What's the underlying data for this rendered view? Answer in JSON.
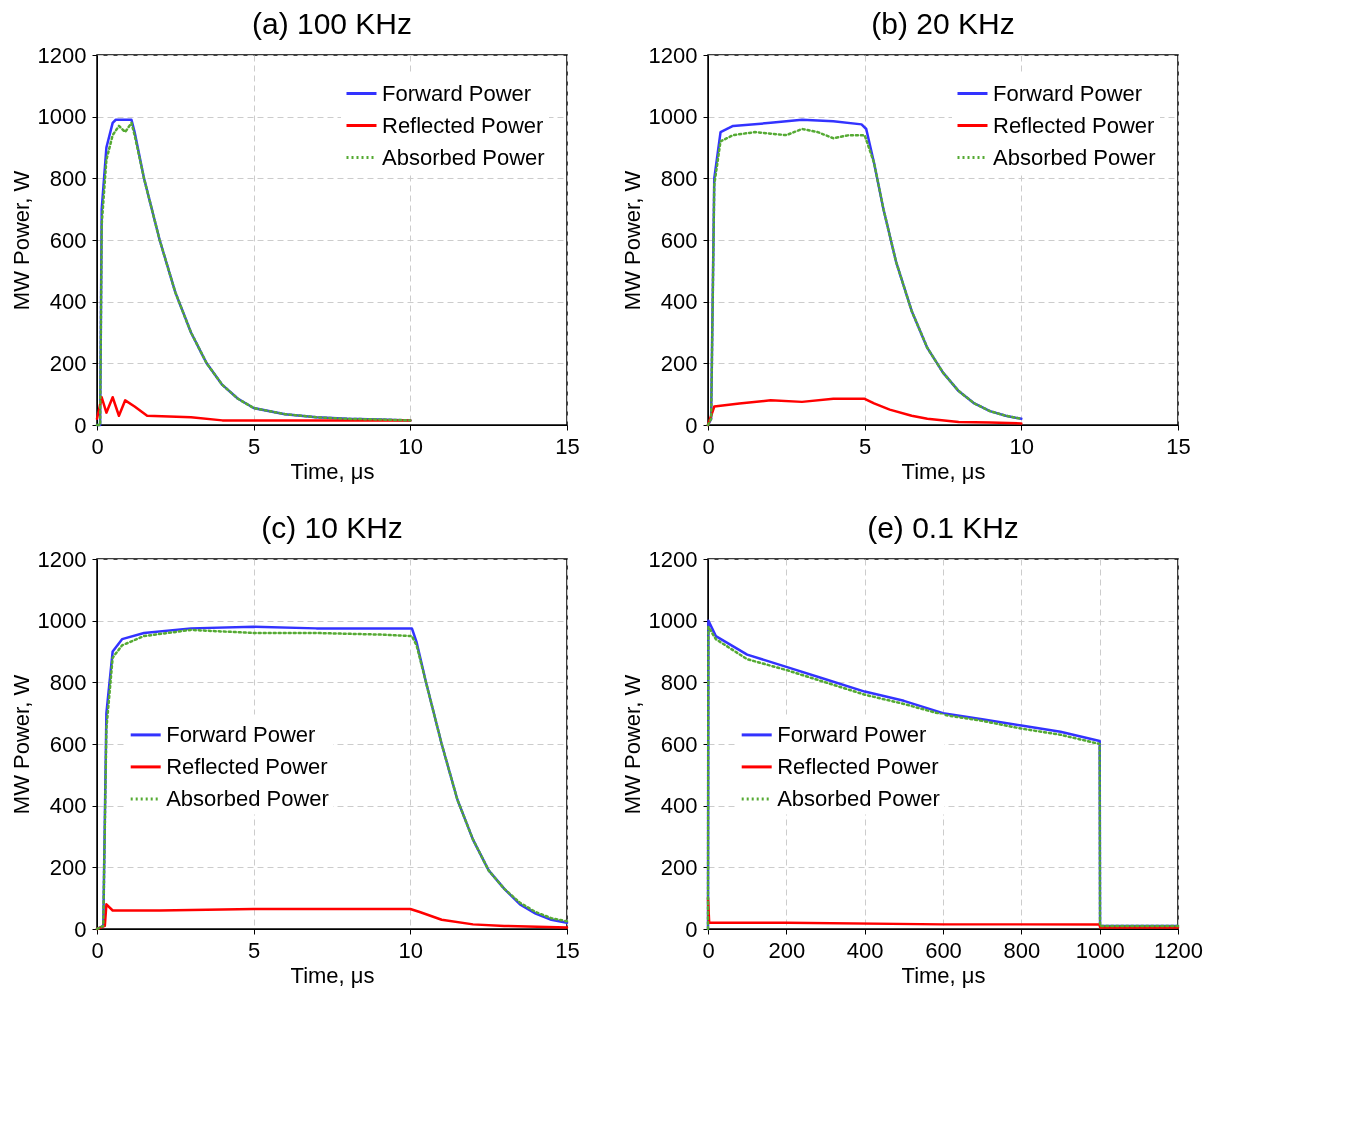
{
  "chart_data": [
    {
      "type": "line",
      "title": "(a) 100 KHz",
      "xlabel": "Time, μs",
      "ylabel": "MW Power, W",
      "xlim": [
        0,
        15
      ],
      "xticks": [
        0,
        5,
        10,
        15
      ],
      "ylim": [
        0,
        1200
      ],
      "yticks": [
        0,
        200,
        400,
        600,
        800,
        1000,
        1200
      ],
      "grid": true,
      "legend": "top right",
      "series": [
        {
          "name": "Forward Power",
          "color": "#3333ff",
          "line_style": "solid",
          "x": [
            0,
            0.1,
            0.15,
            0.3,
            0.5,
            0.6,
            1.1,
            1.2,
            1.5,
            2,
            2.5,
            3,
            3.5,
            4,
            4.5,
            5,
            6,
            7,
            8,
            9,
            10
          ],
          "values": [
            0,
            0,
            700,
            900,
            980,
            990,
            990,
            950,
            800,
            600,
            430,
            300,
            200,
            130,
            85,
            55,
            35,
            25,
            20,
            18,
            15
          ]
        },
        {
          "name": "Reflected Power",
          "color": "#ff0000",
          "line_style": "solid",
          "x": [
            0,
            0.15,
            0.3,
            0.5,
            0.7,
            0.9,
            1.2,
            1.6,
            3,
            4,
            5,
            7,
            10
          ],
          "values": [
            20,
            90,
            40,
            90,
            30,
            80,
            60,
            30,
            25,
            15,
            15,
            15,
            15
          ]
        },
        {
          "name": "Absorbed Power",
          "color": "#55aa33",
          "line_style": "dotted",
          "x": [
            0,
            0.1,
            0.15,
            0.3,
            0.5,
            0.7,
            0.9,
            1.1,
            1.2,
            1.5,
            2,
            2.5,
            3,
            3.5,
            4,
            4.5,
            5,
            6,
            7,
            8,
            9,
            10
          ],
          "values": [
            0,
            0,
            650,
            860,
            940,
            970,
            950,
            980,
            940,
            800,
            600,
            430,
            300,
            200,
            130,
            85,
            55,
            35,
            25,
            20,
            18,
            15
          ]
        }
      ]
    },
    {
      "type": "line",
      "title": "(b) 20 KHz",
      "xlabel": "Time, μs",
      "ylabel": "MW Power, W",
      "xlim": [
        0,
        15
      ],
      "xticks": [
        0,
        5,
        10,
        15
      ],
      "ylim": [
        0,
        1200
      ],
      "yticks": [
        0,
        200,
        400,
        600,
        800,
        1000,
        1200
      ],
      "grid": true,
      "legend": "top right",
      "series": [
        {
          "name": "Forward Power",
          "color": "#3333ff",
          "line_style": "solid",
          "x": [
            0,
            0.1,
            0.2,
            0.4,
            0.8,
            2,
            3,
            4,
            4.9,
            5.05,
            5.3,
            5.6,
            6,
            6.5,
            7,
            7.5,
            8,
            8.5,
            9,
            9.5,
            10
          ],
          "values": [
            0,
            20,
            800,
            950,
            970,
            980,
            990,
            985,
            975,
            960,
            850,
            700,
            530,
            370,
            250,
            170,
            110,
            70,
            45,
            30,
            20
          ]
        },
        {
          "name": "Reflected Power",
          "color": "#ff0000",
          "line_style": "solid",
          "x": [
            0,
            0.2,
            1,
            2,
            3,
            4,
            5,
            5.3,
            5.8,
            6.5,
            7,
            8,
            9,
            10
          ],
          "values": [
            0,
            60,
            70,
            80,
            75,
            85,
            85,
            70,
            50,
            30,
            20,
            10,
            8,
            5
          ]
        },
        {
          "name": "Absorbed Power",
          "color": "#55aa33",
          "line_style": "dotted",
          "x": [
            0,
            0.1,
            0.2,
            0.4,
            0.8,
            1.5,
            2.5,
            3,
            3.5,
            4,
            4.5,
            5,
            5.3,
            5.6,
            6,
            6.5,
            7,
            7.5,
            8,
            8.5,
            9,
            9.5,
            10
          ],
          "values": [
            0,
            20,
            780,
            920,
            940,
            950,
            940,
            960,
            950,
            930,
            940,
            940,
            850,
            700,
            530,
            370,
            250,
            170,
            110,
            70,
            45,
            30,
            20
          ]
        }
      ]
    },
    {
      "type": "line",
      "title": "(c) 10 KHz",
      "xlabel": "Time, μs",
      "ylabel": "MW Power, W",
      "xlim": [
        0,
        15
      ],
      "xticks": [
        0,
        5,
        10,
        15
      ],
      "ylim": [
        0,
        1200
      ],
      "yticks": [
        0,
        200,
        400,
        600,
        800,
        1000,
        1200
      ],
      "grid": true,
      "legend": "left",
      "series": [
        {
          "name": "Forward Power",
          "color": "#3333ff",
          "line_style": "solid",
          "x": [
            0,
            0.2,
            0.3,
            0.5,
            0.8,
            1.5,
            3,
            5,
            7,
            9,
            10.05,
            10.2,
            10.5,
            11,
            11.5,
            12,
            12.5,
            13,
            13.5,
            14,
            14.5,
            15
          ],
          "values": [
            0,
            10,
            700,
            900,
            940,
            960,
            975,
            980,
            975,
            975,
            975,
            930,
            800,
            600,
            420,
            290,
            190,
            130,
            80,
            50,
            30,
            20
          ]
        },
        {
          "name": "Reflected Power",
          "color": "#ff0000",
          "line_style": "solid",
          "x": [
            0,
            0.25,
            0.3,
            0.5,
            2,
            5,
            8,
            10,
            10.3,
            11,
            12,
            13,
            15
          ],
          "values": [
            0,
            10,
            80,
            60,
            60,
            65,
            65,
            65,
            55,
            30,
            15,
            10,
            5
          ]
        },
        {
          "name": "Absorbed Power",
          "color": "#55aa33",
          "line_style": "dotted",
          "x": [
            0,
            0.2,
            0.3,
            0.5,
            0.8,
            1.5,
            3,
            5,
            7,
            9,
            10.05,
            10.2,
            10.5,
            11,
            11.5,
            12,
            12.5,
            13,
            13.5,
            14,
            14.5,
            15
          ],
          "values": [
            0,
            10,
            650,
            880,
            920,
            950,
            970,
            960,
            960,
            955,
            950,
            920,
            800,
            600,
            420,
            290,
            190,
            130,
            85,
            55,
            35,
            25
          ]
        }
      ]
    },
    {
      "type": "line",
      "title": "(e) 0.1 KHz",
      "xlabel": "Time, μs",
      "ylabel": "MW Power, W",
      "xlim": [
        0,
        1200
      ],
      "xticks": [
        0,
        200,
        400,
        600,
        800,
        1000,
        1200
      ],
      "ylim": [
        0,
        1200
      ],
      "yticks": [
        0,
        200,
        400,
        600,
        800,
        1000,
        1200
      ],
      "grid": true,
      "legend": "left",
      "series": [
        {
          "name": "Forward Power",
          "color": "#3333ff",
          "line_style": "solid",
          "x": [
            0,
            1,
            20,
            100,
            200,
            300,
            400,
            500,
            600,
            700,
            800,
            900,
            1000,
            1001,
            1200
          ],
          "values": [
            0,
            1000,
            950,
            890,
            850,
            810,
            770,
            740,
            700,
            680,
            660,
            640,
            610,
            10,
            10
          ]
        },
        {
          "name": "Reflected Power",
          "color": "#ff0000",
          "line_style": "solid",
          "x": [
            0,
            3,
            200,
            600,
            1000,
            1001,
            1200
          ],
          "values": [
            100,
            20,
            20,
            15,
            15,
            5,
            5
          ]
        },
        {
          "name": "Absorbed Power",
          "color": "#55aa33",
          "line_style": "dotted",
          "x": [
            0,
            1,
            20,
            100,
            200,
            300,
            400,
            500,
            600,
            700,
            800,
            900,
            1000,
            1001,
            1200
          ],
          "values": [
            0,
            980,
            940,
            875,
            840,
            800,
            760,
            730,
            695,
            675,
            650,
            630,
            600,
            10,
            10
          ]
        }
      ]
    }
  ]
}
